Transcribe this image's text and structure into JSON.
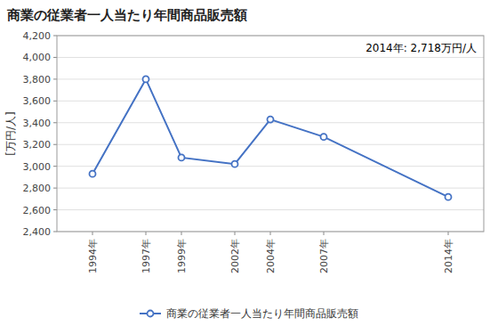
{
  "chart_data": {
    "type": "line",
    "title": "商業の従業者一人当たり年間商品販売額",
    "y_label": "[万円/人]",
    "annotation": "2014年: 2,718万円/人",
    "x": [
      1994,
      1997,
      1999,
      2002,
      2004,
      2007,
      2014
    ],
    "series": [
      {
        "name": "商業の従業者一人当たり年間商品販売額",
        "color": "#4472C4",
        "marker": "o",
        "line_style": "solid",
        "values": [
          2930,
          3800,
          3080,
          3020,
          3430,
          3270,
          2718
        ]
      }
    ],
    "xlim": [
      1992,
      2016
    ],
    "xticks": [
      {
        "value": 1994,
        "label": "1994年"
      },
      {
        "value": 1997,
        "label": "1997年"
      },
      {
        "value": 1999,
        "label": "1999年"
      },
      {
        "value": 2002,
        "label": "2002年"
      },
      {
        "value": 2004,
        "label": "2004年"
      },
      {
        "value": 2007,
        "label": "2007年"
      },
      {
        "value": 2014,
        "label": "2014年"
      }
    ],
    "ylim": [
      2400,
      4200
    ],
    "yticks": [
      {
        "value": 2400,
        "label": "2,400"
      },
      {
        "value": 2600,
        "label": "2,600"
      },
      {
        "value": 2800,
        "label": "2,800"
      },
      {
        "value": 3000,
        "label": "3,000"
      },
      {
        "value": 3200,
        "label": "3,200"
      },
      {
        "value": 3400,
        "label": "3,400"
      },
      {
        "value": 3600,
        "label": "3,600"
      },
      {
        "value": 3800,
        "label": "3,800"
      },
      {
        "value": 4000,
        "label": "4,000"
      },
      {
        "value": 4200,
        "label": "4,200"
      }
    ],
    "grid": true,
    "legend": "bottom"
  }
}
